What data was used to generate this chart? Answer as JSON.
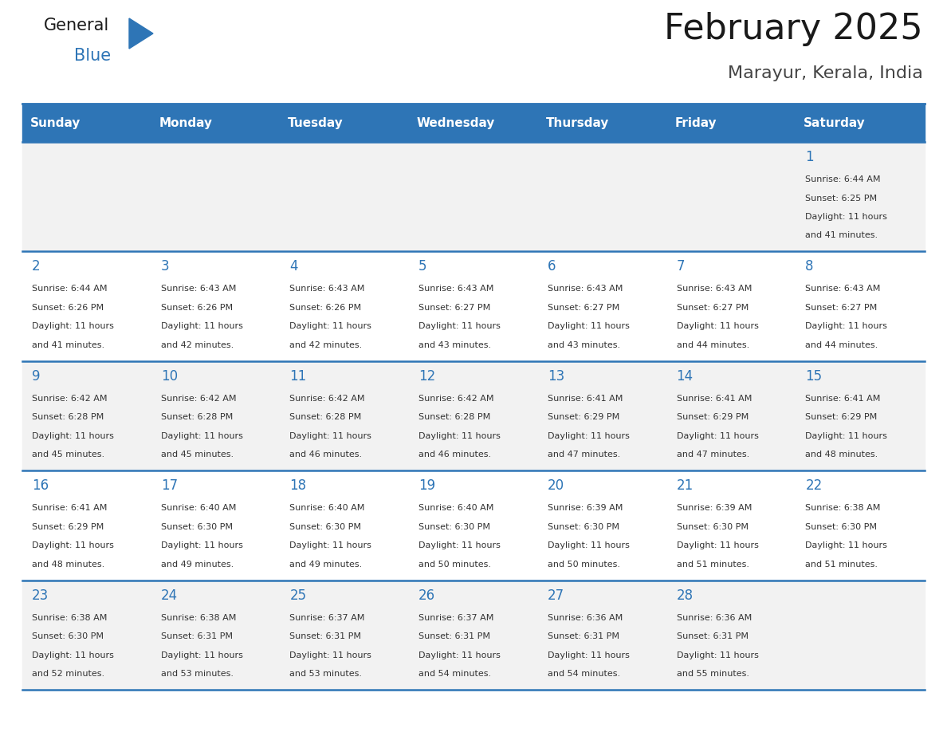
{
  "title": "February 2025",
  "subtitle": "Marayur, Kerala, India",
  "header_bg": "#2E75B6",
  "header_text_color": "#FFFFFF",
  "cell_bg_white": "#FFFFFF",
  "cell_bg_gray": "#F2F2F2",
  "separator_color": "#2E75B6",
  "day_headers": [
    "Sunday",
    "Monday",
    "Tuesday",
    "Wednesday",
    "Thursday",
    "Friday",
    "Saturday"
  ],
  "title_color": "#1A1A1A",
  "subtitle_color": "#444444",
  "day_number_color": "#2E75B6",
  "cell_text_color": "#333333",
  "logo_general_color": "#1A1A1A",
  "logo_blue_color": "#2E75B6",
  "calendar_data": [
    [
      null,
      null,
      null,
      null,
      null,
      null,
      {
        "day": 1,
        "sunrise": "6:44 AM",
        "sunset": "6:25 PM",
        "daylight": "11 hours and 41 minutes."
      }
    ],
    [
      {
        "day": 2,
        "sunrise": "6:44 AM",
        "sunset": "6:26 PM",
        "daylight": "11 hours and 41 minutes."
      },
      {
        "day": 3,
        "sunrise": "6:43 AM",
        "sunset": "6:26 PM",
        "daylight": "11 hours and 42 minutes."
      },
      {
        "day": 4,
        "sunrise": "6:43 AM",
        "sunset": "6:26 PM",
        "daylight": "11 hours and 42 minutes."
      },
      {
        "day": 5,
        "sunrise": "6:43 AM",
        "sunset": "6:27 PM",
        "daylight": "11 hours and 43 minutes."
      },
      {
        "day": 6,
        "sunrise": "6:43 AM",
        "sunset": "6:27 PM",
        "daylight": "11 hours and 43 minutes."
      },
      {
        "day": 7,
        "sunrise": "6:43 AM",
        "sunset": "6:27 PM",
        "daylight": "11 hours and 44 minutes."
      },
      {
        "day": 8,
        "sunrise": "6:43 AM",
        "sunset": "6:27 PM",
        "daylight": "11 hours and 44 minutes."
      }
    ],
    [
      {
        "day": 9,
        "sunrise": "6:42 AM",
        "sunset": "6:28 PM",
        "daylight": "11 hours and 45 minutes."
      },
      {
        "day": 10,
        "sunrise": "6:42 AM",
        "sunset": "6:28 PM",
        "daylight": "11 hours and 45 minutes."
      },
      {
        "day": 11,
        "sunrise": "6:42 AM",
        "sunset": "6:28 PM",
        "daylight": "11 hours and 46 minutes."
      },
      {
        "day": 12,
        "sunrise": "6:42 AM",
        "sunset": "6:28 PM",
        "daylight": "11 hours and 46 minutes."
      },
      {
        "day": 13,
        "sunrise": "6:41 AM",
        "sunset": "6:29 PM",
        "daylight": "11 hours and 47 minutes."
      },
      {
        "day": 14,
        "sunrise": "6:41 AM",
        "sunset": "6:29 PM",
        "daylight": "11 hours and 47 minutes."
      },
      {
        "day": 15,
        "sunrise": "6:41 AM",
        "sunset": "6:29 PM",
        "daylight": "11 hours and 48 minutes."
      }
    ],
    [
      {
        "day": 16,
        "sunrise": "6:41 AM",
        "sunset": "6:29 PM",
        "daylight": "11 hours and 48 minutes."
      },
      {
        "day": 17,
        "sunrise": "6:40 AM",
        "sunset": "6:30 PM",
        "daylight": "11 hours and 49 minutes."
      },
      {
        "day": 18,
        "sunrise": "6:40 AM",
        "sunset": "6:30 PM",
        "daylight": "11 hours and 49 minutes."
      },
      {
        "day": 19,
        "sunrise": "6:40 AM",
        "sunset": "6:30 PM",
        "daylight": "11 hours and 50 minutes."
      },
      {
        "day": 20,
        "sunrise": "6:39 AM",
        "sunset": "6:30 PM",
        "daylight": "11 hours and 50 minutes."
      },
      {
        "day": 21,
        "sunrise": "6:39 AM",
        "sunset": "6:30 PM",
        "daylight": "11 hours and 51 minutes."
      },
      {
        "day": 22,
        "sunrise": "6:38 AM",
        "sunset": "6:30 PM",
        "daylight": "11 hours and 51 minutes."
      }
    ],
    [
      {
        "day": 23,
        "sunrise": "6:38 AM",
        "sunset": "6:30 PM",
        "daylight": "11 hours and 52 minutes."
      },
      {
        "day": 24,
        "sunrise": "6:38 AM",
        "sunset": "6:31 PM",
        "daylight": "11 hours and 53 minutes."
      },
      {
        "day": 25,
        "sunrise": "6:37 AM",
        "sunset": "6:31 PM",
        "daylight": "11 hours and 53 minutes."
      },
      {
        "day": 26,
        "sunrise": "6:37 AM",
        "sunset": "6:31 PM",
        "daylight": "11 hours and 54 minutes."
      },
      {
        "day": 27,
        "sunrise": "6:36 AM",
        "sunset": "6:31 PM",
        "daylight": "11 hours and 54 minutes."
      },
      {
        "day": 28,
        "sunrise": "6:36 AM",
        "sunset": "6:31 PM",
        "daylight": "11 hours and 55 minutes."
      },
      null
    ]
  ]
}
